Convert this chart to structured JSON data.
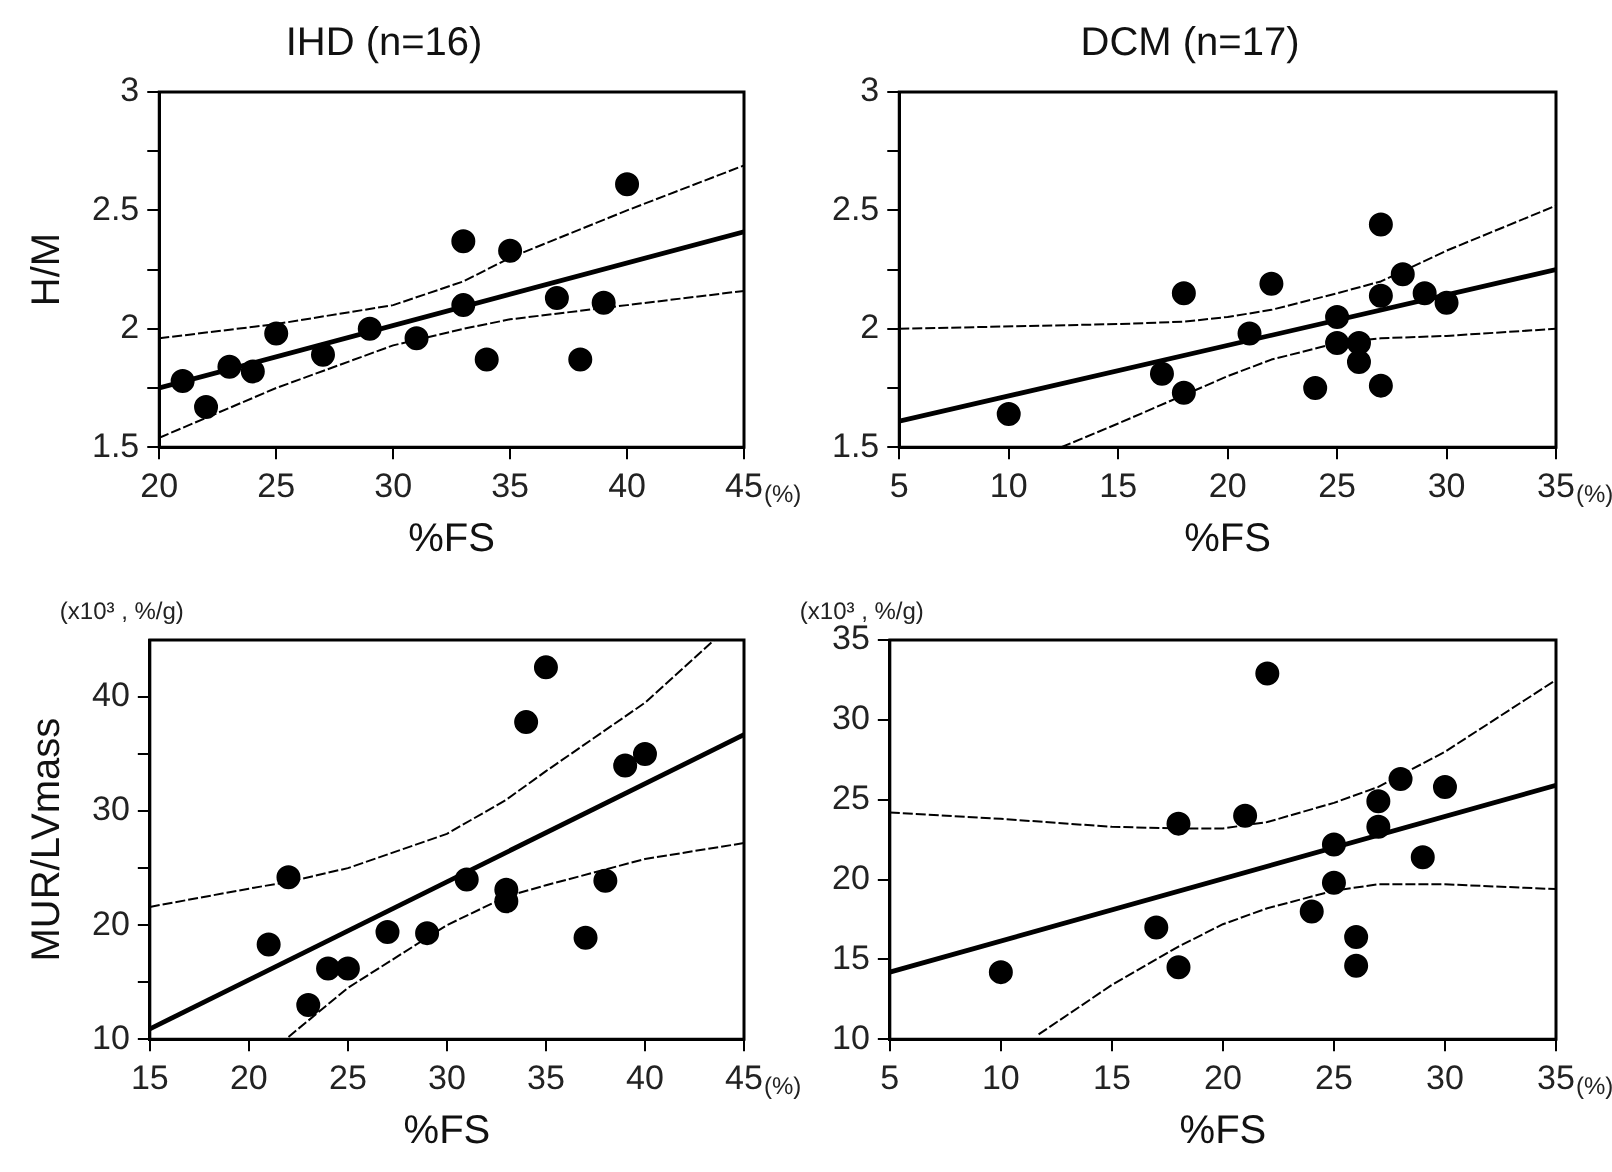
{
  "chart_data": [
    {
      "type": "scatter",
      "title": "IHD (n=16)",
      "ylabel": "H/M",
      "xlabel": "%FS",
      "annotations": [
        "(%)"
      ],
      "grid": false,
      "legend": false,
      "xlim": [
        20,
        45
      ],
      "xticks": [
        20,
        25,
        30,
        35,
        40,
        45
      ],
      "ylim": [
        1.5,
        3
      ],
      "yticks": [
        1.5,
        {
          "value": 1.75,
          "label": null
        },
        2,
        {
          "value": 2.25,
          "label": null
        },
        2.5,
        {
          "value": 2.75,
          "label": null
        },
        3
      ],
      "series": [
        {
          "type": "scatter",
          "marker": "circle",
          "color": "#000000",
          "x": [
            21,
            22,
            23,
            24,
            25,
            27,
            29,
            31,
            33,
            33,
            34,
            35,
            37,
            38,
            39,
            40
          ],
          "values": [
            1.78,
            1.67,
            1.84,
            1.82,
            1.98,
            1.89,
            2.0,
            1.96,
            2.37,
            2.1,
            1.87,
            2.33,
            2.13,
            1.87,
            2.11,
            2.61
          ]
        },
        {
          "type": "line",
          "marker": "none",
          "line_style": "solid",
          "color": "#000000",
          "x": [
            20,
            45
          ],
          "values": [
            1.75,
            2.41
          ]
        },
        {
          "type": "line",
          "marker": "none",
          "line_style": "dashed",
          "color": "#000000",
          "x": [
            20,
            25,
            30,
            33,
            35,
            40,
            45
          ],
          "values": [
            1.96,
            2.02,
            2.1,
            2.2,
            2.3,
            2.5,
            2.69
          ]
        },
        {
          "type": "line",
          "marker": "none",
          "line_style": "dashed",
          "color": "#000000",
          "x": [
            20,
            25,
            30,
            33,
            35,
            40,
            45
          ],
          "values": [
            1.54,
            1.75,
            1.93,
            2.0,
            2.04,
            2.1,
            2.16
          ]
        }
      ]
    },
    {
      "type": "scatter",
      "title": "DCM (n=17)",
      "xlabel": "%FS",
      "annotations": [
        "(%)"
      ],
      "grid": false,
      "legend": false,
      "xlim": [
        5,
        35
      ],
      "xticks": [
        5,
        10,
        15,
        20,
        25,
        30,
        35
      ],
      "ylim": [
        1.5,
        3
      ],
      "yticks": [
        1.5,
        {
          "value": 1.75,
          "label": null
        },
        2,
        {
          "value": 2.25,
          "label": null
        },
        2.5,
        {
          "value": 2.75,
          "label": null
        },
        3
      ],
      "series": [
        {
          "type": "scatter",
          "marker": "circle",
          "color": "#000000",
          "x": [
            10,
            17,
            18,
            18,
            21,
            22,
            24,
            25,
            25,
            26,
            26,
            27,
            27,
            27,
            28,
            29,
            30
          ],
          "values": [
            1.64,
            1.81,
            2.15,
            1.73,
            1.98,
            2.19,
            1.75,
            2.05,
            1.94,
            1.94,
            1.86,
            2.44,
            2.14,
            1.76,
            2.23,
            2.15,
            2.11
          ]
        },
        {
          "type": "line",
          "marker": "none",
          "line_style": "solid",
          "color": "#000000",
          "x": [
            5,
            35
          ],
          "values": [
            1.61,
            2.25
          ]
        },
        {
          "type": "line",
          "marker": "none",
          "line_style": "dashed",
          "color": "#000000",
          "x": [
            5,
            15,
            18,
            20,
            22,
            25,
            27,
            30,
            35
          ],
          "values": [
            2.0,
            2.02,
            2.03,
            2.05,
            2.08,
            2.15,
            2.2,
            2.33,
            2.52
          ]
        },
        {
          "type": "line",
          "marker": "none",
          "line_style": "dashed",
          "color": "#000000",
          "x": [
            12.4,
            15,
            18,
            20,
            22,
            25,
            27,
            30,
            35
          ],
          "values": [
            1.5,
            1.6,
            1.72,
            1.8,
            1.87,
            1.94,
            1.96,
            1.97,
            2.0
          ]
        }
      ]
    },
    {
      "type": "scatter",
      "ylabel": "MUR/LVmass",
      "xlabel": "%FS",
      "annotations": [
        "(%)",
        "(x10³ , %/g)"
      ],
      "grid": false,
      "legend": false,
      "xlim": [
        15,
        45
      ],
      "xticks": [
        15,
        20,
        25,
        30,
        35,
        40,
        45
      ],
      "ylim": [
        10,
        45
      ],
      "yticks": [
        10,
        {
          "value": 15,
          "label": null
        },
        20,
        {
          "value": 25,
          "label": null
        },
        30,
        {
          "value": 35,
          "label": null
        },
        40
      ],
      "series": [
        {
          "type": "scatter",
          "marker": "circle",
          "color": "#000000",
          "x": [
            21,
            22,
            23,
            24,
            25,
            27,
            29,
            31,
            33,
            33,
            34,
            35,
            37,
            38,
            39,
            40
          ],
          "values": [
            18.3,
            24.2,
            13.0,
            16.2,
            16.2,
            19.4,
            19.3,
            24.0,
            23.1,
            22.1,
            37.8,
            42.6,
            18.9,
            23.9,
            34.0,
            35.0
          ]
        },
        {
          "type": "line",
          "marker": "none",
          "line_style": "solid",
          "color": "#000000",
          "x": [
            15,
            45
          ],
          "values": [
            10.9,
            36.7
          ]
        },
        {
          "type": "line",
          "marker": "none",
          "line_style": "dashed",
          "color": "#000000",
          "x": [
            15,
            20,
            22,
            25,
            30,
            33,
            35,
            40,
            43.5
          ],
          "values": [
            21.6,
            23.2,
            23.8,
            25.0,
            28.0,
            31.0,
            33.5,
            39.5,
            45
          ]
        },
        {
          "type": "line",
          "marker": "none",
          "line_style": "dashed",
          "color": "#000000",
          "x": [
            22,
            25,
            30,
            33,
            35,
            40,
            45
          ],
          "values": [
            10.2,
            14.5,
            20,
            22.5,
            23.5,
            25.8,
            27.2
          ]
        }
      ]
    },
    {
      "type": "scatter",
      "xlabel": "%FS",
      "annotations": [
        "(%)",
        "(x10³ , %/g)"
      ],
      "grid": false,
      "legend": false,
      "xlim": [
        5,
        35
      ],
      "xticks": [
        5,
        10,
        15,
        20,
        25,
        30,
        35
      ],
      "ylim": [
        10,
        35
      ],
      "yticks": [
        10,
        15,
        20,
        25,
        30,
        35
      ],
      "series": [
        {
          "type": "scatter",
          "marker": "circle",
          "color": "#000000",
          "x": [
            10,
            17,
            18,
            18,
            21,
            22,
            24,
            25,
            25,
            26,
            26,
            27,
            27,
            28,
            29,
            30
          ],
          "values": [
            14.2,
            17.0,
            23.5,
            14.5,
            24.0,
            32.9,
            18.0,
            22.2,
            19.8,
            16.4,
            14.6,
            24.9,
            23.3,
            26.3,
            21.4,
            25.8
          ]
        },
        {
          "type": "line",
          "marker": "none",
          "line_style": "solid",
          "color": "#000000",
          "x": [
            5,
            35
          ],
          "values": [
            14.2,
            25.9
          ]
        },
        {
          "type": "line",
          "marker": "none",
          "line_style": "dashed",
          "color": "#000000",
          "x": [
            5,
            10,
            15,
            18,
            20,
            22,
            25,
            27,
            30,
            35
          ],
          "values": [
            24.2,
            23.8,
            23.3,
            23.2,
            23.2,
            23.6,
            24.8,
            25.8,
            28,
            32.5
          ]
        },
        {
          "type": "line",
          "marker": "none",
          "line_style": "dashed",
          "color": "#000000",
          "x": [
            11.7,
            15,
            18,
            20,
            22,
            25,
            27,
            30,
            35
          ],
          "values": [
            10.3,
            13.4,
            15.8,
            17.2,
            18.2,
            19.3,
            19.7,
            19.7,
            19.4
          ]
        }
      ]
    }
  ]
}
